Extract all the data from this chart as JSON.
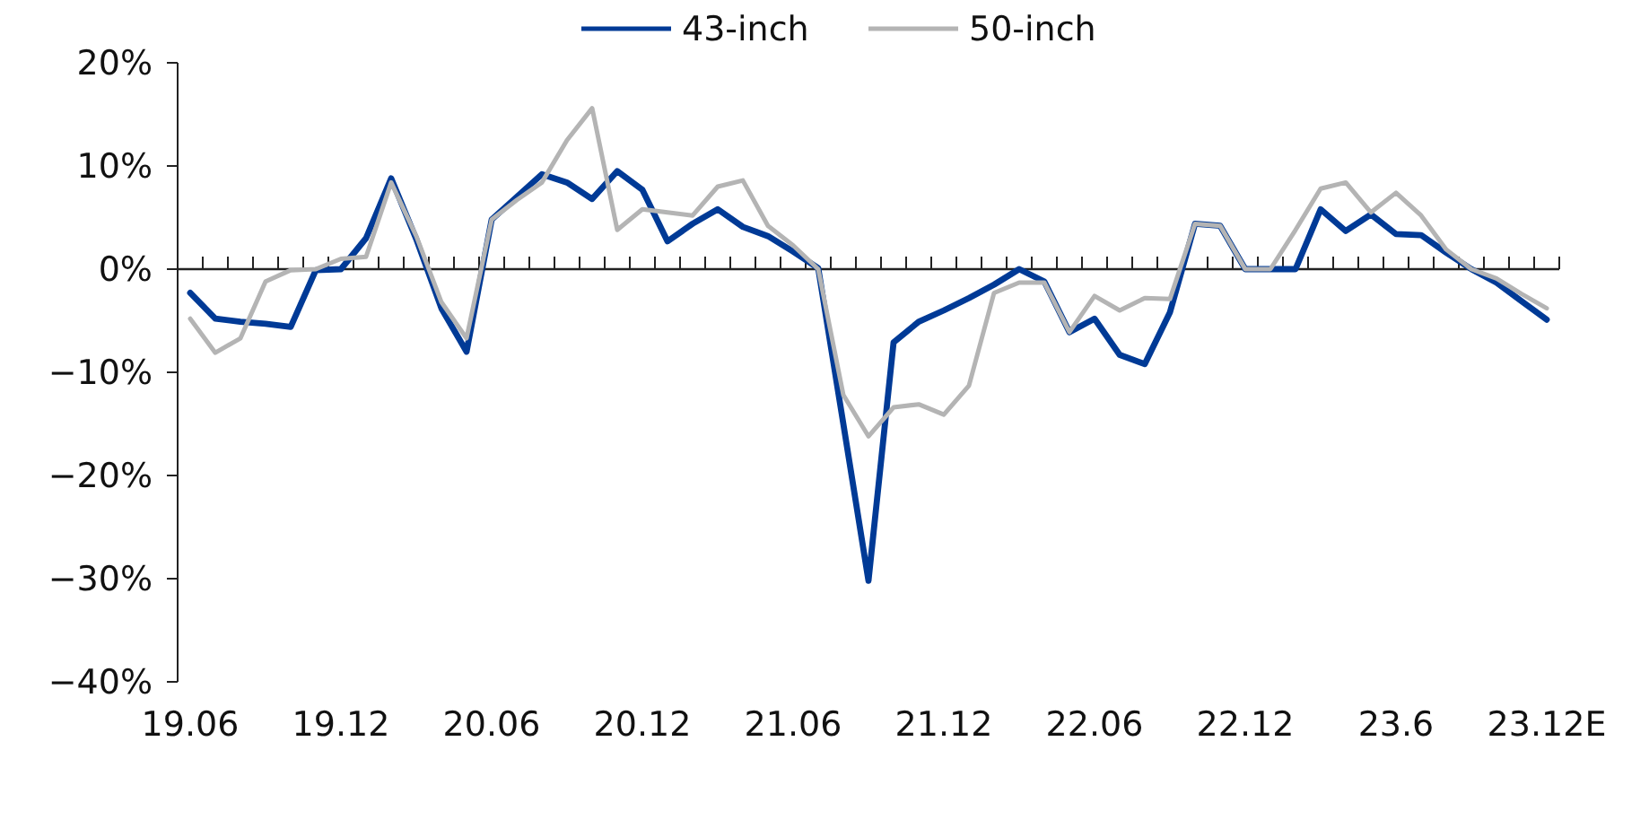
{
  "chart_data": {
    "type": "line",
    "categories": [
      "19.06",
      null,
      null,
      null,
      null,
      null,
      "19.12",
      null,
      null,
      null,
      null,
      null,
      "20.06",
      null,
      null,
      null,
      null,
      null,
      "20.12",
      null,
      null,
      null,
      null,
      null,
      "21.06",
      null,
      null,
      null,
      null,
      null,
      "21.12",
      null,
      null,
      null,
      null,
      null,
      "22.06",
      null,
      null,
      null,
      null,
      null,
      "22.12",
      null,
      null,
      null,
      null,
      null,
      "23.6",
      null,
      null,
      null,
      null,
      null,
      "23.12E"
    ],
    "series": [
      {
        "name": "43-inch",
        "color": "#003a96",
        "values": [
          -2.3,
          -4.8,
          -5.1,
          -5.3,
          -5.6,
          -0.1,
          0,
          3.0,
          8.8,
          2.9,
          -3.8,
          -8.0,
          4.8,
          7.0,
          9.2,
          8.4,
          6.8,
          9.5,
          7.7,
          2.7,
          4.4,
          5.8,
          4.1,
          3.2,
          1.7,
          0.1,
          -15,
          -30.2,
          -7.1,
          -5.1,
          -4.0,
          -2.8,
          -1.5,
          0,
          -1.2,
          -6.1,
          -4.8,
          -8.3,
          -9.2,
          -4.2,
          4.4,
          4.2,
          0,
          0,
          0,
          5.8,
          3.7,
          5.3,
          3.4,
          3.3,
          1.6,
          0,
          -1.3,
          -3.1,
          -4.9
        ]
      },
      {
        "name": "50-inch",
        "color": "#b4b4b4",
        "values": [
          -4.8,
          -8.1,
          -6.7,
          -1.2,
          -0.1,
          0,
          1.0,
          1.2,
          8.4,
          3.2,
          -3.2,
          -6.7,
          4.8,
          6.7,
          8.4,
          12.5,
          15.6,
          3.8,
          5.8,
          5.5,
          5.2,
          8.0,
          8.6,
          4.2,
          2.3,
          0,
          -12.2,
          -16.2,
          -13.4,
          -13.1,
          -14.1,
          -11.3,
          -2.3,
          -1.3,
          -1.3,
          -6.1,
          -2.6,
          -4.0,
          -2.8,
          -2.9,
          4.4,
          4.2,
          0,
          0,
          3.8,
          7.8,
          8.4,
          5.5,
          7.4,
          5.2,
          1.9,
          0,
          -0.9,
          -2.4,
          -3.8
        ]
      }
    ],
    "ylim": [
      -40,
      20
    ],
    "yticks": [
      {
        "value": -40,
        "label": "−40%"
      },
      {
        "value": -30,
        "label": "−30%"
      },
      {
        "value": -20,
        "label": "−20%"
      },
      {
        "value": -10,
        "label": "−10%"
      },
      {
        "value": 0,
        "label": "0%"
      },
      {
        "value": 10,
        "label": "10%"
      },
      {
        "value": 20,
        "label": "20%"
      }
    ],
    "legend": "top",
    "marker": "none",
    "line_style": "solid"
  }
}
